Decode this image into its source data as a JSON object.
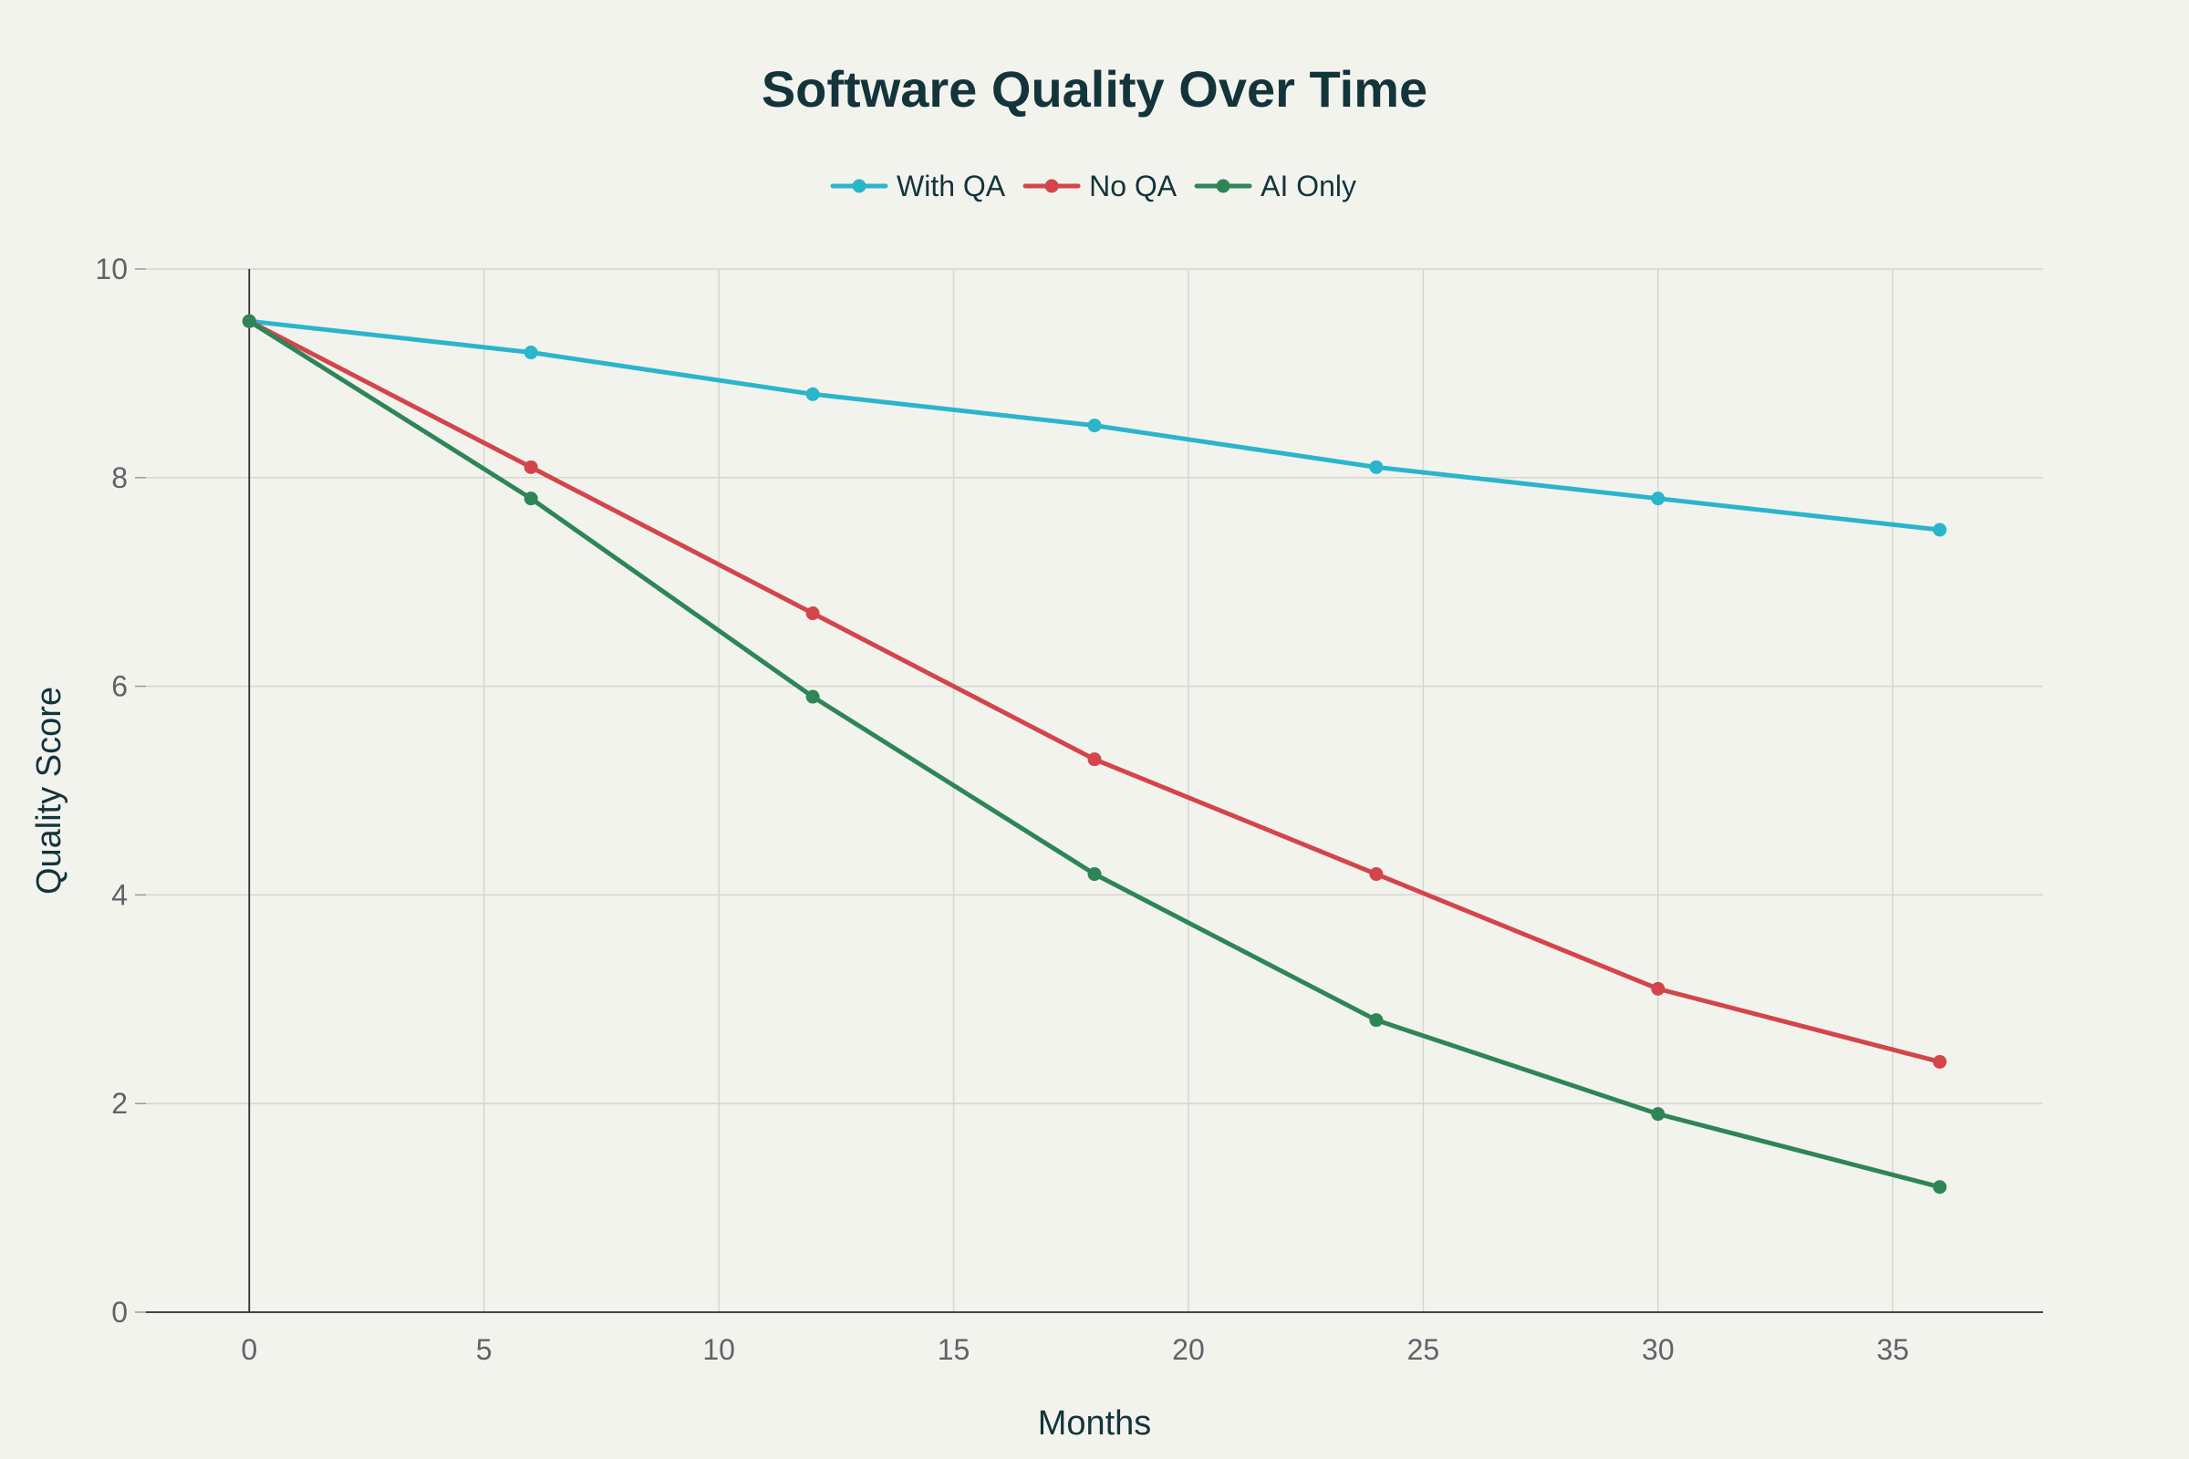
{
  "chart_data": {
    "type": "line",
    "title": "Software Quality Over Time",
    "xlabel": "Months",
    "ylabel": "Quality Score",
    "xlim": [
      -2.2,
      38.2
    ],
    "ylim": [
      0,
      10
    ],
    "xticks": [
      0,
      5,
      10,
      15,
      20,
      25,
      30,
      35
    ],
    "yticks": [
      0,
      2,
      4,
      6,
      8,
      10
    ],
    "grid": true,
    "legend_position": "top-center",
    "x": [
      0,
      6,
      12,
      18,
      24,
      30,
      36
    ],
    "series": [
      {
        "name": "With QA",
        "color": "#2bb5cb",
        "values": [
          9.5,
          9.2,
          8.8,
          8.5,
          8.1,
          7.8,
          7.5
        ]
      },
      {
        "name": "No QA",
        "color": "#d3454a",
        "values": [
          9.5,
          8.1,
          6.7,
          5.3,
          4.2,
          3.1,
          2.4
        ]
      },
      {
        "name": "AI Only",
        "color": "#2e8556",
        "values": [
          9.5,
          7.8,
          5.9,
          4.2,
          2.8,
          1.9,
          1.2
        ]
      }
    ]
  }
}
